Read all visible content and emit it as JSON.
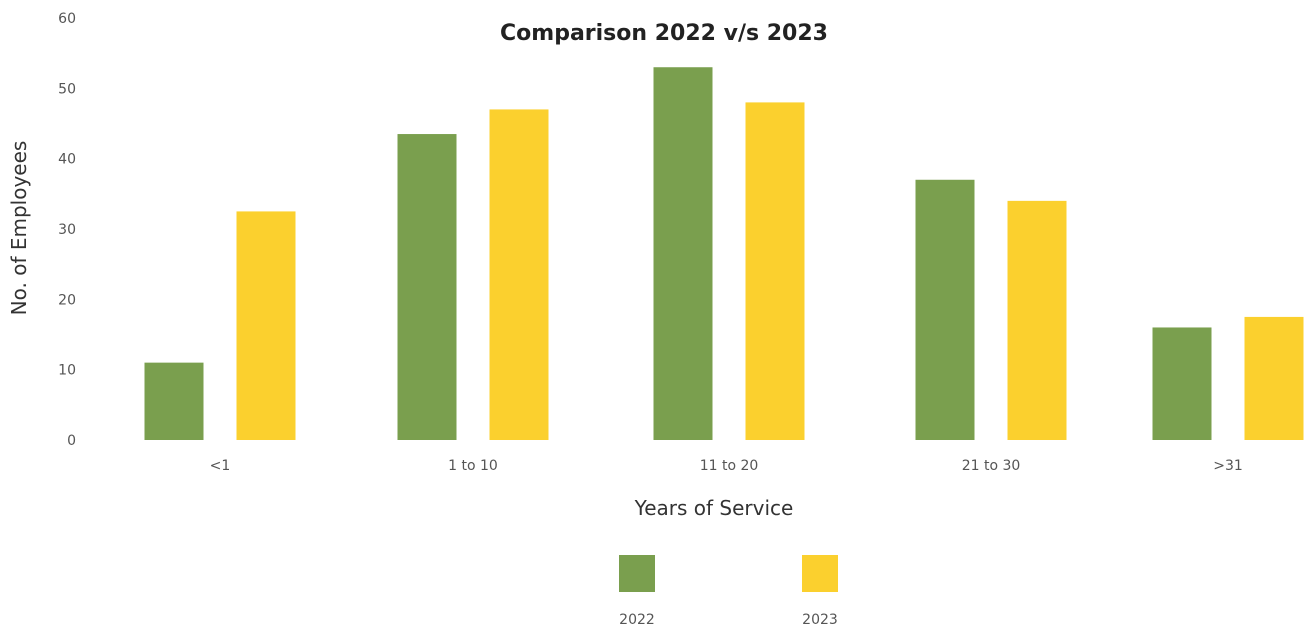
{
  "chart_data": {
    "type": "bar",
    "title": "Comparison 2022 v/s 2023",
    "xlabel": "Years of Service",
    "ylabel": "No. of Employees",
    "categories": [
      "<1",
      "1 to 10",
      "11 to 20",
      "21 to 30",
      ">31"
    ],
    "series": [
      {
        "name": "2022",
        "color": "#7a9f4e",
        "values": [
          11,
          43.5,
          53,
          37,
          16
        ]
      },
      {
        "name": "2023",
        "color": "#fbd02e",
        "values": [
          32.5,
          47,
          48,
          34,
          17.5
        ]
      }
    ],
    "ylim": [
      0,
      60
    ],
    "yticks": [
      0,
      10,
      20,
      30,
      40,
      50,
      60
    ],
    "grid": false,
    "legend_position": "bottom"
  }
}
